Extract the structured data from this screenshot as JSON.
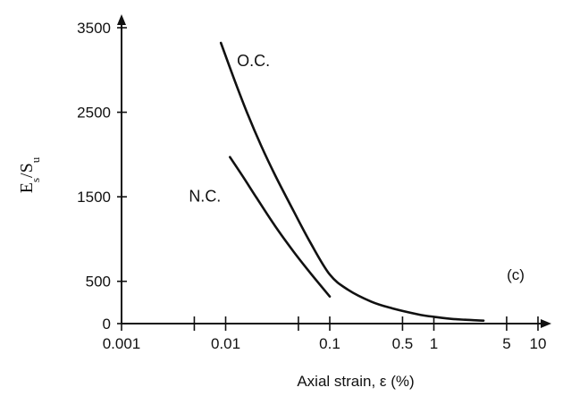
{
  "chart_data": {
    "type": "line",
    "title": "",
    "xlabel": "Axial strain, ε (%)",
    "ylabel_main": "E",
    "ylabel_sub1": "s",
    "ylabel_mid": "/S",
    "ylabel_sub2": "u",
    "x_scale": "log",
    "xlim": [
      0.001,
      15
    ],
    "ylim": [
      0,
      3600
    ],
    "x_ticks": [
      0.001,
      0.01,
      0.1,
      1,
      10
    ],
    "x_tick_labels": [
      "0.001",
      "0.01",
      "0.1",
      "0.5",
      "1",
      "5",
      "10"
    ],
    "x_labeled_tick_values": [
      0.001,
      0.01,
      0.1,
      0.5,
      1,
      5,
      10
    ],
    "x_minor_ticks": [
      0.005,
      0.05,
      0.5,
      5
    ],
    "y_ticks": [
      0,
      500,
      1500,
      2500,
      3500
    ],
    "y_tick_labels": [
      "0",
      "500",
      "1500",
      "2500",
      "3500"
    ],
    "grid": false,
    "panel_label": "(c)",
    "series": [
      {
        "name": "O.C.",
        "x": [
          0.009,
          0.012,
          0.016,
          0.022,
          0.03,
          0.045,
          0.065,
          0.1,
          0.15,
          0.25,
          0.4,
          0.7,
          1.0,
          1.5,
          2.0,
          3.0
        ],
        "y": [
          3320,
          2900,
          2500,
          2100,
          1750,
          1330,
          960,
          580,
          400,
          260,
          180,
          110,
          80,
          55,
          45,
          35
        ]
      },
      {
        "name": "N.C.",
        "x": [
          0.011,
          0.015,
          0.02,
          0.03,
          0.045,
          0.065,
          0.1
        ],
        "y": [
          1970,
          1720,
          1480,
          1150,
          850,
          600,
          320
        ]
      }
    ]
  }
}
